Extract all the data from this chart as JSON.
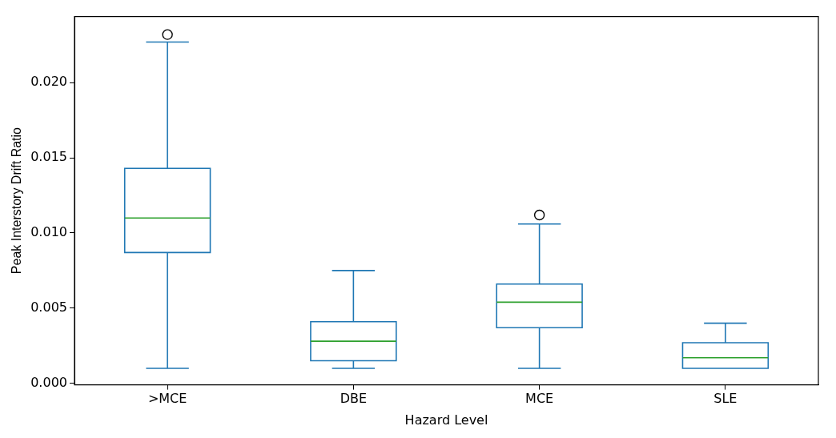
{
  "chart_data": {
    "type": "box",
    "xlabel": "Hazard Level",
    "ylabel": "Peak Interstory Drift Ratio",
    "categories": [
      ">MCE",
      "DBE",
      "MCE",
      "SLE"
    ],
    "series": [
      {
        "color": "#1f77b4",
        "boxes": [
          {
            "low": 0.001,
            "q1": 0.0087,
            "median": 0.011,
            "q3": 0.0143,
            "high": 0.0227,
            "outliers": [
              0.0232
            ]
          },
          {
            "low": 0.001,
            "q1": 0.0015,
            "median": 0.0028,
            "q3": 0.0041,
            "high": 0.0075
          },
          {
            "low": 0.001,
            "q1": 0.0037,
            "median": 0.0054,
            "q3": 0.0066,
            "high": 0.0106,
            "outliers": [
              0.0112
            ]
          },
          {
            "low": 0.001,
            "q1": 0.001,
            "median": 0.0017,
            "q3": 0.0027,
            "high": 0.004
          }
        ]
      }
    ],
    "ylim": [
      -0.0001,
      0.0244
    ],
    "yticks": [
      {
        "value": 0,
        "label": "0.000"
      },
      {
        "value": 0.005,
        "label": "0.005"
      },
      {
        "value": 0.01,
        "label": "0.010"
      },
      {
        "value": 0.015,
        "label": "0.015"
      },
      {
        "value": 0.02,
        "label": "0.020"
      }
    ],
    "grid": false,
    "legend": false
  }
}
